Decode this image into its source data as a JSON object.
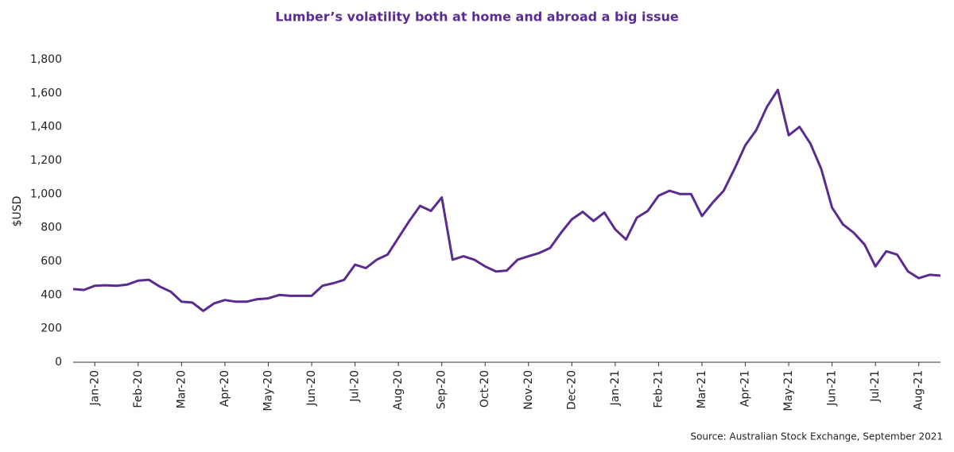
{
  "chart_data": {
    "type": "line",
    "title": "Lumber’s volatility both at home and abroad a big issue",
    "y_label": "$USD",
    "source": "Source: Australian Stock Exchange, September 2021",
    "categories": [
      null,
      null,
      "Jan-20",
      null,
      null,
      null,
      "Feb-20",
      null,
      null,
      null,
      "Mar-20",
      null,
      null,
      null,
      "Apr-20",
      null,
      null,
      null,
      "May-20",
      null,
      null,
      null,
      "Jun-20",
      null,
      null,
      null,
      "Jul-20",
      null,
      null,
      null,
      "Aug-20",
      null,
      null,
      null,
      "Sep-20",
      null,
      null,
      null,
      "Oct-20",
      null,
      null,
      null,
      "Nov-20",
      null,
      null,
      null,
      "Dec-20",
      null,
      null,
      null,
      "Jan-21",
      null,
      null,
      null,
      "Feb-21",
      null,
      null,
      null,
      "Mar-21",
      null,
      null,
      null,
      "Apr-21",
      null,
      null,
      null,
      "May-21",
      null,
      null,
      null,
      "Jun-21",
      null,
      null,
      null,
      "Jul-21",
      null,
      null,
      null,
      "Aug-21",
      null,
      null
    ],
    "series": [
      {
        "name": "Lumber",
        "color": "#5b2c8f",
        "values": [
          435,
          430,
          455,
          458,
          455,
          462,
          485,
          490,
          450,
          420,
          360,
          355,
          305,
          350,
          370,
          360,
          360,
          375,
          380,
          400,
          395,
          395,
          395,
          455,
          470,
          490,
          580,
          560,
          610,
          640,
          740,
          840,
          930,
          900,
          980,
          610,
          630,
          610,
          570,
          540,
          545,
          610,
          630,
          650,
          680,
          770,
          850,
          895,
          840,
          890,
          790,
          730,
          860,
          900,
          990,
          1020,
          1000,
          1000,
          870,
          950,
          1020,
          1150,
          1290,
          1380,
          1520,
          1620,
          1350,
          1400,
          1300,
          1150,
          920,
          820,
          770,
          700,
          570,
          660,
          640,
          540,
          500,
          520,
          515
        ]
      }
    ],
    "ylim": [
      0,
      1800
    ],
    "yticks": [
      0,
      200,
      400,
      600,
      800,
      {
        "value": 1000,
        "label": "1,000"
      },
      {
        "value": 1200,
        "label": "1,200"
      },
      {
        "value": 1400,
        "label": "1,400"
      },
      {
        "value": 1600,
        "label": "1,600"
      },
      {
        "value": 1800,
        "label": "1,800"
      }
    ],
    "grid": false
  }
}
